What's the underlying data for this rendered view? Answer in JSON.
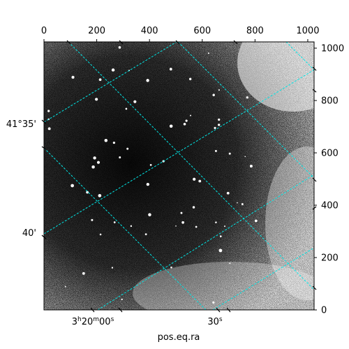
{
  "image": {
    "description_colors": {
      "background_dark": "#1a1a1a",
      "background_light": "#ffffff",
      "grid": "#00e5e5"
    }
  },
  "axes": {
    "top": {
      "ticks": [
        "0",
        "200",
        "400",
        "600",
        "800",
        "1000"
      ],
      "values": [
        0,
        200,
        400,
        600,
        800,
        1000
      ]
    },
    "right": {
      "ticks": [
        "0",
        "200",
        "400",
        "600",
        "800",
        "1000"
      ],
      "values": [
        0,
        200,
        400,
        600,
        800,
        1000
      ]
    },
    "pixel_range": [
      0,
      1024
    ],
    "bottom_label": "pos.eq.ra",
    "bottom_ticks": [
      {
        "pre": "3",
        "sup1": "h",
        "mid": "20",
        "sup2": "m",
        "post": "00",
        "sup3": "s"
      },
      {
        "pre": "30",
        "sup3": "s"
      }
    ],
    "left_ticks": [
      "41°35'",
      "40'"
    ]
  }
}
